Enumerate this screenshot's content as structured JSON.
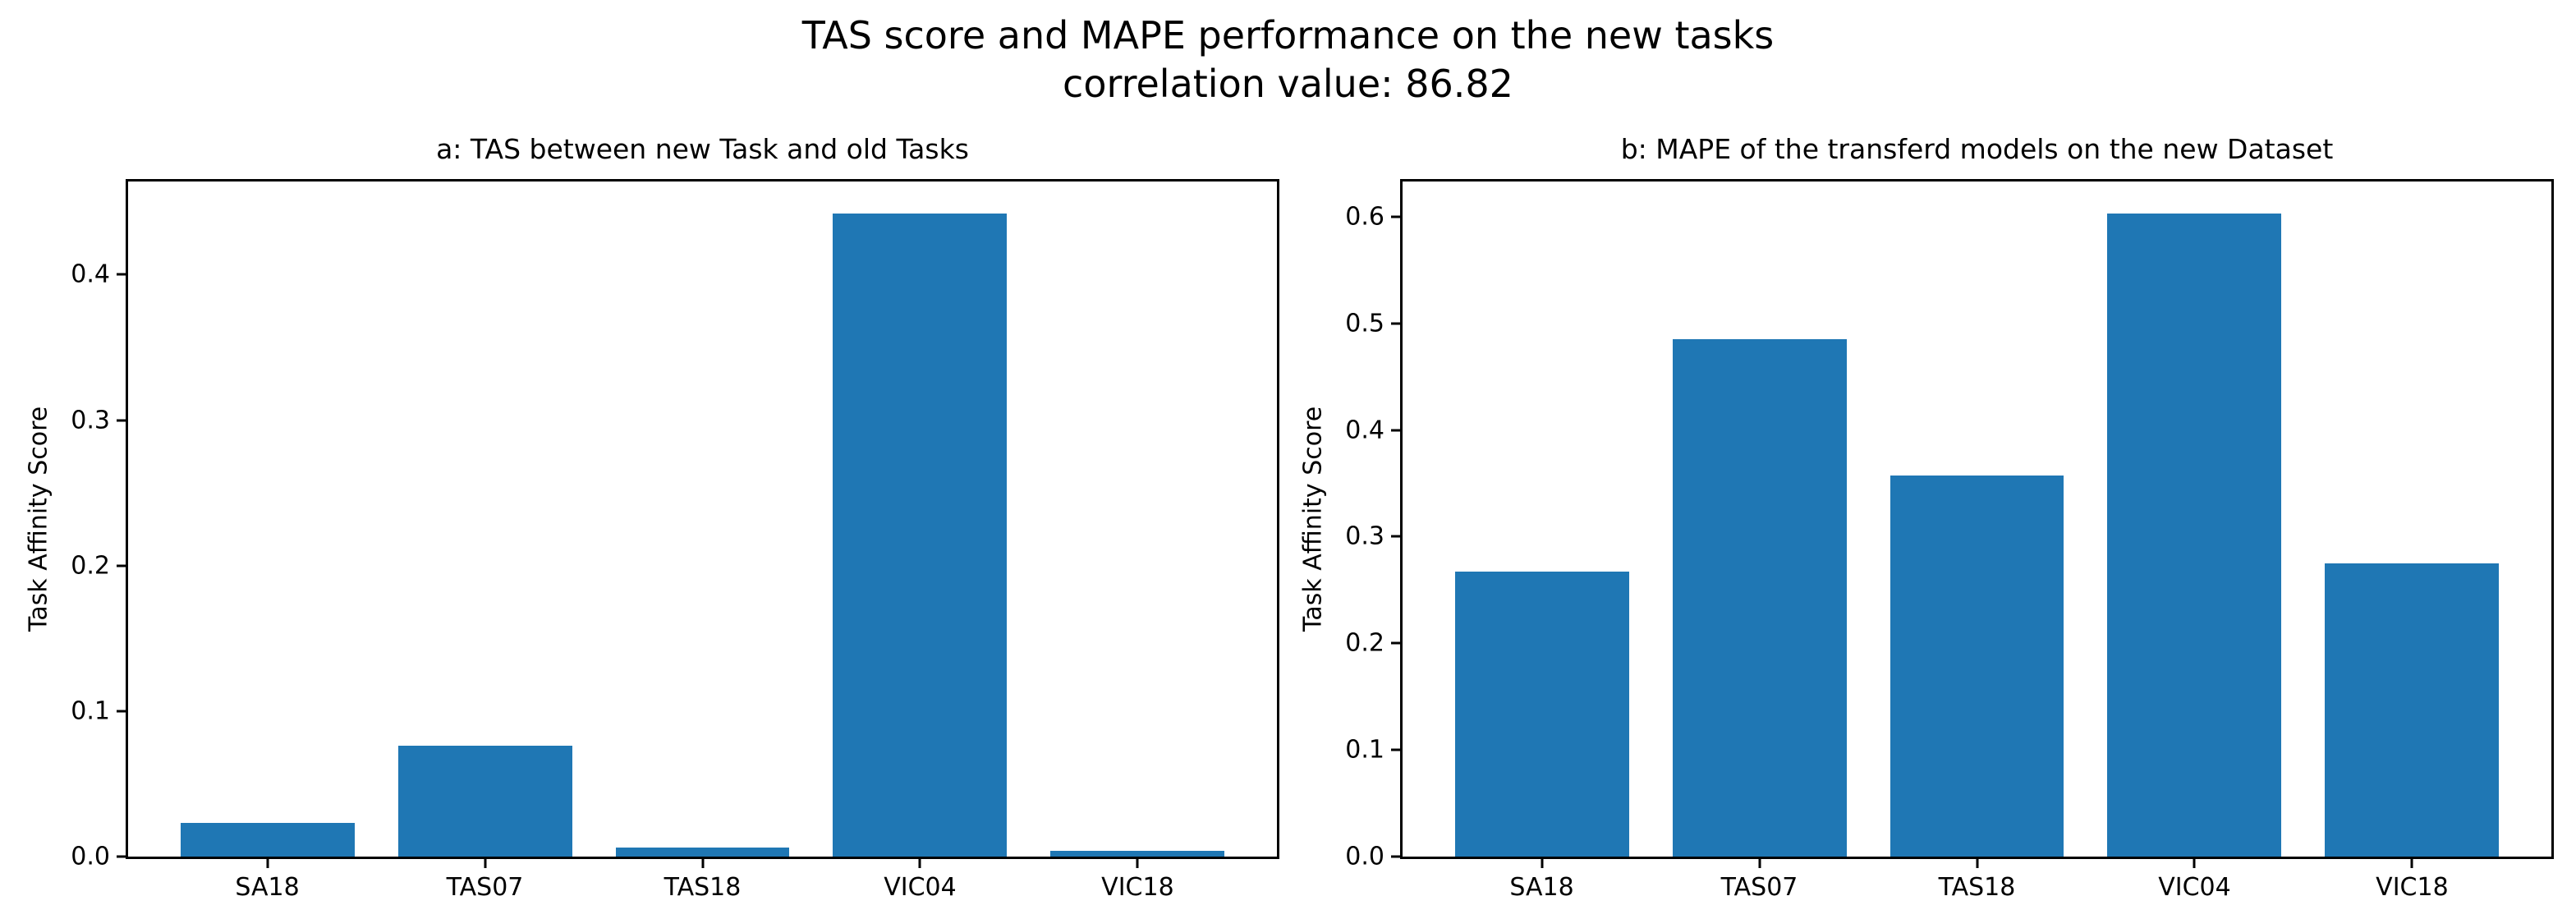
{
  "figure": {
    "suptitle": {
      "line1": "TAS score and MAPE performance on the new tasks",
      "line2": "correlation value: 86.82"
    },
    "colors": {
      "bar": "#1f77b4",
      "spine": "#000000",
      "text": "#000000",
      "background": "#ffffff"
    }
  },
  "chart_data": [
    {
      "type": "bar",
      "title": "a: TAS between new Task and old Tasks",
      "ylabel": "Task Affinity Score",
      "xlabel": "",
      "categories": [
        "SA18",
        "TAS07",
        "TAS18",
        "VIC04",
        "VIC18"
      ],
      "values": [
        0.023,
        0.076,
        0.006,
        0.442,
        0.004
      ],
      "yticks": [
        0.0,
        0.1,
        0.2,
        0.3,
        0.4
      ],
      "ylim": [
        0,
        0.464
      ],
      "xlim": [
        -0.64,
        4.64
      ],
      "bar_width": 0.8,
      "grid": false,
      "legend": null
    },
    {
      "type": "bar",
      "title": "b: MAPE of the transferd models on the new Dataset",
      "ylabel": "Task Affinity Score",
      "xlabel": "",
      "categories": [
        "SA18",
        "TAS07",
        "TAS18",
        "VIC04",
        "VIC18"
      ],
      "values": [
        0.267,
        0.485,
        0.357,
        0.603,
        0.275
      ],
      "yticks": [
        0.0,
        0.1,
        0.2,
        0.3,
        0.4,
        0.5,
        0.6
      ],
      "ylim": [
        0,
        0.633
      ],
      "xlim": [
        -0.64,
        4.64
      ],
      "bar_width": 0.8,
      "grid": false,
      "legend": null
    }
  ]
}
